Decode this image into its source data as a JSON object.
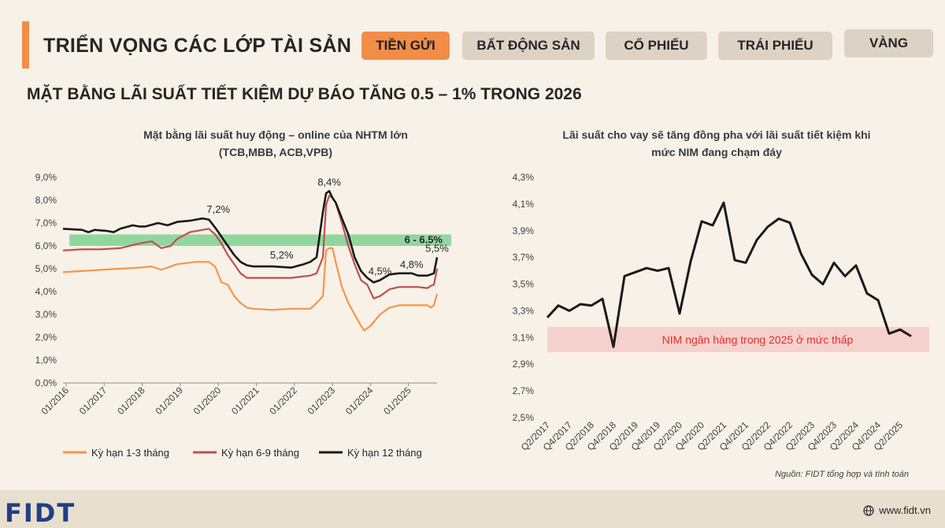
{
  "header": {
    "title": "TRIỂN VỌNG CÁC LỚP TÀI SẢN",
    "tabs": [
      {
        "label": "TIỀN GỬI",
        "active": true
      },
      {
        "label": "BẤT ĐỘNG SẢN",
        "active": false
      },
      {
        "label": "CỔ PHIẾU",
        "active": false
      },
      {
        "label": "TRÁI PHIẾU",
        "active": false
      },
      {
        "label": "VÀNG",
        "active": false
      }
    ]
  },
  "subtitle": "MẶT BẰNG LÃI SUẤT TIẾT KIỆM DỰ BÁO TĂNG 0.5 – 1% TRONG 2026",
  "colors": {
    "accent": "#f28d47",
    "series_short": "#f79646",
    "series_mid": "#c0504d",
    "series_long": "#1a1a1a",
    "band_green": "#7fd28f",
    "band_red": "#f6d0cc",
    "logo": "#1f3f87"
  },
  "chart_data": [
    {
      "type": "line",
      "title_line1": "Mặt bằng lãi suất huy động – online của NHTM lớn",
      "title_line2": "(TCB,MBB, ACB,VPB)",
      "y_ticks": [
        "0,0%",
        "1,0%",
        "2,0%",
        "3,0%",
        "4,0%",
        "5,0%",
        "6,0%",
        "7,0%",
        "8,0%",
        "9,0%"
      ],
      "ylim": [
        0,
        9
      ],
      "x_ticks": [
        "01/2016",
        "01/2017",
        "01/2018",
        "01/2019",
        "01/2020",
        "01/2021",
        "01/2022",
        "01/2023",
        "01/2024",
        "01/2025"
      ],
      "band": {
        "from": 6.0,
        "to": 6.5,
        "label": "6 - 6.5%"
      },
      "annotations": [
        {
          "label": "7,2%",
          "t": 49,
          "v": 7.2
        },
        {
          "label": "5,2%",
          "t": 69,
          "v": 5.2
        },
        {
          "label": "8,4%",
          "t": 84,
          "v": 8.4
        },
        {
          "label": "4,5%",
          "t": 100,
          "v": 4.5
        },
        {
          "label": "4,8%",
          "t": 110,
          "v": 4.8
        },
        {
          "label": "5,5%",
          "t": 118,
          "v": 5.5
        }
      ],
      "series": [
        {
          "name": "Kỳ hạn 1-3 tháng",
          "color": "#f79646",
          "points": [
            [
              0,
              4.85
            ],
            [
              6,
              4.9
            ],
            [
              12,
              4.95
            ],
            [
              18,
              5.0
            ],
            [
              24,
              5.05
            ],
            [
              28,
              5.1
            ],
            [
              31,
              4.95
            ],
            [
              36,
              5.2
            ],
            [
              42,
              5.3
            ],
            [
              46,
              5.3
            ],
            [
              48,
              5.1
            ],
            [
              50,
              4.4
            ],
            [
              52,
              4.3
            ],
            [
              54,
              3.8
            ],
            [
              56,
              3.5
            ],
            [
              58,
              3.3
            ],
            [
              60,
              3.25
            ],
            [
              66,
              3.2
            ],
            [
              72,
              3.25
            ],
            [
              78,
              3.25
            ],
            [
              80,
              3.5
            ],
            [
              82,
              3.8
            ],
            [
              83,
              5.8
            ],
            [
              84,
              5.9
            ],
            [
              85,
              5.9
            ],
            [
              86,
              5.3
            ],
            [
              88,
              4.2
            ],
            [
              90,
              3.5
            ],
            [
              92,
              3.0
            ],
            [
              94,
              2.5
            ],
            [
              95,
              2.3
            ],
            [
              97,
              2.5
            ],
            [
              100,
              3.0
            ],
            [
              103,
              3.3
            ],
            [
              106,
              3.4
            ],
            [
              112,
              3.4
            ],
            [
              115,
              3.4
            ],
            [
              116,
              3.3
            ],
            [
              117,
              3.4
            ],
            [
              118,
              3.9
            ]
          ]
        },
        {
          "name": "Kỳ hạn 6-9 tháng",
          "color": "#c0504d",
          "points": [
            [
              0,
              5.8
            ],
            [
              6,
              5.85
            ],
            [
              12,
              5.85
            ],
            [
              18,
              5.9
            ],
            [
              24,
              6.1
            ],
            [
              28,
              6.2
            ],
            [
              31,
              5.9
            ],
            [
              34,
              6.0
            ],
            [
              36,
              6.3
            ],
            [
              40,
              6.6
            ],
            [
              44,
              6.7
            ],
            [
              46,
              6.75
            ],
            [
              48,
              6.5
            ],
            [
              50,
              6.1
            ],
            [
              52,
              5.6
            ],
            [
              54,
              5.2
            ],
            [
              56,
              4.8
            ],
            [
              58,
              4.6
            ],
            [
              60,
              4.6
            ],
            [
              66,
              4.6
            ],
            [
              72,
              4.6
            ],
            [
              78,
              4.7
            ],
            [
              80,
              4.8
            ],
            [
              82,
              5.5
            ],
            [
              83,
              7.8
            ],
            [
              84,
              8.2
            ],
            [
              85,
              8.1
            ],
            [
              86,
              7.9
            ],
            [
              88,
              7.0
            ],
            [
              90,
              6.0
            ],
            [
              92,
              5.2
            ],
            [
              94,
              4.5
            ],
            [
              96,
              4.3
            ],
            [
              98,
              3.7
            ],
            [
              100,
              3.8
            ],
            [
              103,
              4.1
            ],
            [
              106,
              4.2
            ],
            [
              112,
              4.2
            ],
            [
              115,
              4.15
            ],
            [
              116,
              4.25
            ],
            [
              117,
              4.3
            ],
            [
              118,
              5.0
            ]
          ]
        },
        {
          "name": "Kỳ hạn 12 tháng",
          "color": "#1a1a1a",
          "points": [
            [
              0,
              6.75
            ],
            [
              6,
              6.7
            ],
            [
              8,
              6.6
            ],
            [
              10,
              6.7
            ],
            [
              14,
              6.65
            ],
            [
              16,
              6.6
            ],
            [
              18,
              6.75
            ],
            [
              22,
              6.9
            ],
            [
              24,
              6.85
            ],
            [
              26,
              6.85
            ],
            [
              30,
              7.0
            ],
            [
              33,
              6.9
            ],
            [
              36,
              7.05
            ],
            [
              40,
              7.1
            ],
            [
              44,
              7.2
            ],
            [
              46,
              7.15
            ],
            [
              48,
              6.8
            ],
            [
              50,
              6.4
            ],
            [
              52,
              6.0
            ],
            [
              54,
              5.6
            ],
            [
              56,
              5.3
            ],
            [
              58,
              5.15
            ],
            [
              60,
              5.1
            ],
            [
              66,
              5.1
            ],
            [
              72,
              5.05
            ],
            [
              76,
              5.2
            ],
            [
              78,
              5.3
            ],
            [
              80,
              5.5
            ],
            [
              82,
              7.5
            ],
            [
              83,
              8.3
            ],
            [
              84,
              8.4
            ],
            [
              85,
              8.1
            ],
            [
              86,
              7.9
            ],
            [
              88,
              7.2
            ],
            [
              90,
              6.5
            ],
            [
              92,
              5.5
            ],
            [
              94,
              4.9
            ],
            [
              96,
              4.6
            ],
            [
              98,
              4.4
            ],
            [
              100,
              4.5
            ],
            [
              103,
              4.75
            ],
            [
              106,
              4.8
            ],
            [
              110,
              4.8
            ],
            [
              112,
              4.7
            ],
            [
              115,
              4.7
            ],
            [
              116,
              4.75
            ],
            [
              117,
              4.8
            ],
            [
              118,
              5.5
            ]
          ]
        }
      ]
    },
    {
      "type": "line",
      "title_line1": "Lãi suất cho vay sẽ tăng đồng pha với lãi suất tiết kiệm khi",
      "title_line2": "mức NIM đang chạm đáy",
      "y_ticks": [
        "2,5%",
        "2,7%",
        "2,9%",
        "3,1%",
        "3,3%",
        "3,5%",
        "3,7%",
        "3,9%",
        "4,1%",
        "4,3%"
      ],
      "ylim": [
        2.5,
        4.3
      ],
      "x_ticks": [
        "Q2/2017",
        "Q4/2017",
        "Q2/2018",
        "Q4/2018",
        "Q2/2019",
        "Q4/2019",
        "Q2/2020",
        "Q4/2020",
        "Q2/2021",
        "Q4/2021",
        "Q2/2022",
        "Q4/2022",
        "Q2/2023",
        "Q4/2023",
        "Q2/2024",
        "Q4/2024",
        "Q2/2025"
      ],
      "band": {
        "from": 2.99,
        "to": 3.18,
        "label": "NIM ngân hàng trong 2025 ở mức thấp"
      },
      "series": [
        {
          "name": "",
          "color": "#1a1a1a",
          "values": [
            3.25,
            3.34,
            3.3,
            3.35,
            3.34,
            3.39,
            3.03,
            3.56,
            3.59,
            3.62,
            3.6,
            3.62,
            3.28,
            3.67,
            3.97,
            3.94,
            4.11,
            3.68,
            3.66,
            3.83,
            3.93,
            3.99,
            3.96,
            3.73,
            3.57,
            3.5,
            3.66,
            3.56,
            3.64,
            3.43,
            3.38,
            3.13,
            3.16,
            3.11
          ]
        }
      ]
    }
  ],
  "source": "Nguồn: FIDT tổng hợp và tính toán",
  "footer": {
    "logo": "FIDT",
    "website": "www.fidt.vn"
  }
}
